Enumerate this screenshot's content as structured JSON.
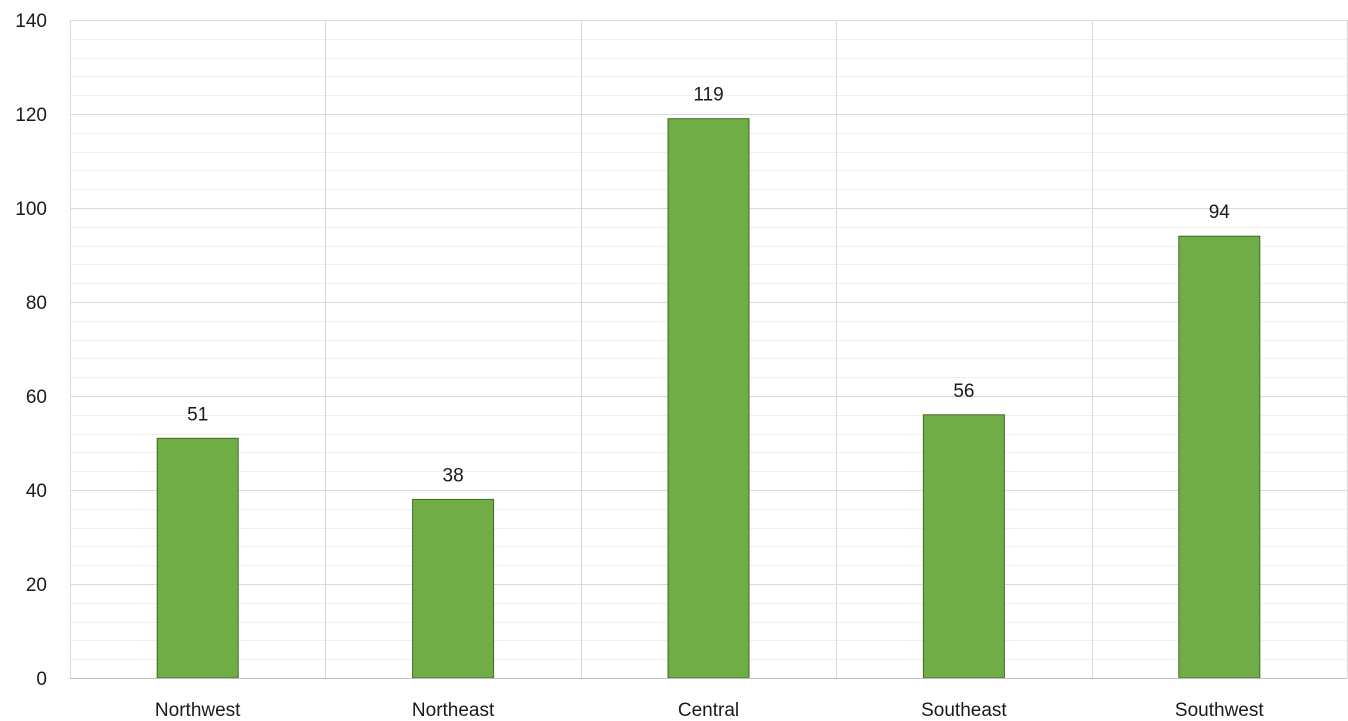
{
  "chart_data": {
    "type": "bar",
    "title": "",
    "xlabel": "",
    "ylabel": "",
    "categories": [
      "Northwest",
      "Northeast",
      "Central",
      "Southeast",
      "Southwest"
    ],
    "values": [
      51,
      38,
      119,
      56,
      94
    ],
    "data_labels": [
      "51",
      "38",
      "119",
      "56",
      "94"
    ],
    "ylim": [
      0,
      140
    ],
    "y_major_step": 20,
    "y_minor_step": 4,
    "y_tick_labels": [
      "0",
      "20",
      "40",
      "60",
      "80",
      "100",
      "120",
      "140"
    ],
    "grid": {
      "horizontal_major": true,
      "horizontal_minor": true,
      "vertical_category_dividers": true
    },
    "legend": "none",
    "colors": {
      "bar_fill": "#70ad47",
      "bar_stroke": "#3e6b22",
      "major_grid": "#d9d9d9",
      "minor_grid": "#efefef",
      "axis": "#bfbfbf"
    }
  }
}
